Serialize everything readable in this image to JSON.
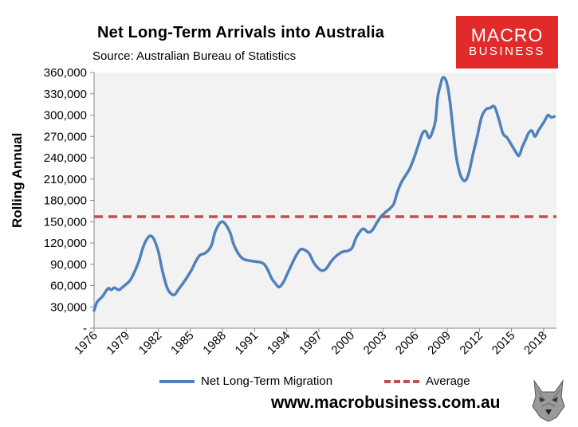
{
  "chart_data": {
    "type": "line",
    "title": "Net Long-Term Arrivals into Australia",
    "subtitle": "Source: Australian Bureau of Statistics",
    "ylabel": "Rolling Annual",
    "xlabel": "",
    "ylim": [
      0,
      360000
    ],
    "xlim": [
      1976.0,
      2019.2
    ],
    "y_ticks": [
      "-",
      "30,000",
      "60,000",
      "90,000",
      "120,000",
      "150,000",
      "180,000",
      "210,000",
      "240,000",
      "270,000",
      "300,000",
      "330,000",
      "360,000"
    ],
    "x_ticks": [
      "1976",
      "1979",
      "1982",
      "1985",
      "1988",
      "1991",
      "1994",
      "1997",
      "2000",
      "2003",
      "2006",
      "2009",
      "2012",
      "2015",
      "2018"
    ],
    "grid": false,
    "legend_position": "bottom",
    "series": [
      {
        "name": "Net Long-Term Migration",
        "color": "#4f81bd",
        "style": "solid",
        "points": [
          [
            1976.0,
            25000
          ],
          [
            1976.3,
            37000
          ],
          [
            1976.8,
            45000
          ],
          [
            1977.3,
            56000
          ],
          [
            1977.6,
            54000
          ],
          [
            1977.9,
            57000
          ],
          [
            1978.3,
            54000
          ],
          [
            1978.6,
            57000
          ],
          [
            1979.0,
            62000
          ],
          [
            1979.4,
            68000
          ],
          [
            1979.8,
            80000
          ],
          [
            1980.2,
            95000
          ],
          [
            1980.6,
            115000
          ],
          [
            1981.0,
            127000
          ],
          [
            1981.3,
            130000
          ],
          [
            1981.6,
            125000
          ],
          [
            1982.0,
            108000
          ],
          [
            1982.4,
            80000
          ],
          [
            1982.8,
            58000
          ],
          [
            1983.1,
            50000
          ],
          [
            1983.5,
            47000
          ],
          [
            1983.9,
            55000
          ],
          [
            1984.3,
            63000
          ],
          [
            1984.7,
            72000
          ],
          [
            1985.1,
            82000
          ],
          [
            1985.5,
            94000
          ],
          [
            1985.9,
            103000
          ],
          [
            1986.3,
            105000
          ],
          [
            1986.7,
            110000
          ],
          [
            1987.0,
            118000
          ],
          [
            1987.3,
            135000
          ],
          [
            1987.7,
            147000
          ],
          [
            1988.0,
            150000
          ],
          [
            1988.3,
            146000
          ],
          [
            1988.7,
            135000
          ],
          [
            1989.0,
            120000
          ],
          [
            1989.4,
            107000
          ],
          [
            1989.8,
            99000
          ],
          [
            1990.2,
            96000
          ],
          [
            1990.6,
            95000
          ],
          [
            1991.0,
            94000
          ],
          [
            1991.5,
            93000
          ],
          [
            1991.9,
            90000
          ],
          [
            1992.2,
            83000
          ],
          [
            1992.6,
            70000
          ],
          [
            1993.0,
            62000
          ],
          [
            1993.3,
            58000
          ],
          [
            1993.7,
            65000
          ],
          [
            1994.1,
            78000
          ],
          [
            1994.5,
            91000
          ],
          [
            1994.9,
            103000
          ],
          [
            1995.3,
            111000
          ],
          [
            1995.7,
            110000
          ],
          [
            1996.1,
            105000
          ],
          [
            1996.5,
            93000
          ],
          [
            1996.9,
            85000
          ],
          [
            1997.3,
            81000
          ],
          [
            1997.7,
            84000
          ],
          [
            1998.1,
            93000
          ],
          [
            1998.5,
            100000
          ],
          [
            1998.9,
            105000
          ],
          [
            1999.3,
            108000
          ],
          [
            1999.7,
            109000
          ],
          [
            2000.1,
            113000
          ],
          [
            2000.5,
            128000
          ],
          [
            2000.9,
            137000
          ],
          [
            2001.2,
            140000
          ],
          [
            2001.6,
            135000
          ],
          [
            2002.0,
            138000
          ],
          [
            2002.4,
            148000
          ],
          [
            2002.8,
            157000
          ],
          [
            2003.2,
            163000
          ],
          [
            2003.6,
            168000
          ],
          [
            2004.0,
            175000
          ],
          [
            2004.3,
            190000
          ],
          [
            2004.7,
            205000
          ],
          [
            2005.1,
            215000
          ],
          [
            2005.5,
            225000
          ],
          [
            2005.9,
            240000
          ],
          [
            2006.3,
            258000
          ],
          [
            2006.7,
            275000
          ],
          [
            2007.0,
            277000
          ],
          [
            2007.3,
            268000
          ],
          [
            2007.6,
            276000
          ],
          [
            2007.9,
            293000
          ],
          [
            2008.1,
            325000
          ],
          [
            2008.4,
            345000
          ],
          [
            2008.6,
            353000
          ],
          [
            2008.9,
            348000
          ],
          [
            2009.2,
            325000
          ],
          [
            2009.5,
            285000
          ],
          [
            2009.8,
            245000
          ],
          [
            2010.1,
            222000
          ],
          [
            2010.4,
            210000
          ],
          [
            2010.7,
            208000
          ],
          [
            2011.0,
            218000
          ],
          [
            2011.4,
            245000
          ],
          [
            2011.8,
            270000
          ],
          [
            2012.2,
            297000
          ],
          [
            2012.6,
            308000
          ],
          [
            2013.0,
            310000
          ],
          [
            2013.4,
            312000
          ],
          [
            2013.8,
            295000
          ],
          [
            2014.2,
            274000
          ],
          [
            2014.6,
            268000
          ],
          [
            2015.0,
            258000
          ],
          [
            2015.4,
            248000
          ],
          [
            2015.7,
            243000
          ],
          [
            2016.0,
            255000
          ],
          [
            2016.3,
            265000
          ],
          [
            2016.6,
            275000
          ],
          [
            2016.9,
            278000
          ],
          [
            2017.2,
            270000
          ],
          [
            2017.5,
            278000
          ],
          [
            2017.8,
            285000
          ],
          [
            2018.1,
            292000
          ],
          [
            2018.4,
            300000
          ],
          [
            2018.7,
            297000
          ],
          [
            2019.0,
            298000
          ]
        ]
      },
      {
        "name": "Average",
        "color": "#c0504d",
        "style": "dashed",
        "points": [
          [
            1976.0,
            157000
          ],
          [
            2019.2,
            157000
          ]
        ]
      }
    ]
  },
  "branding": {
    "logo_line1": "MACRO",
    "logo_line2": "BUSINESS",
    "website": "www.macrobusiness.com.au",
    "logo_color": "#e22a2a"
  }
}
